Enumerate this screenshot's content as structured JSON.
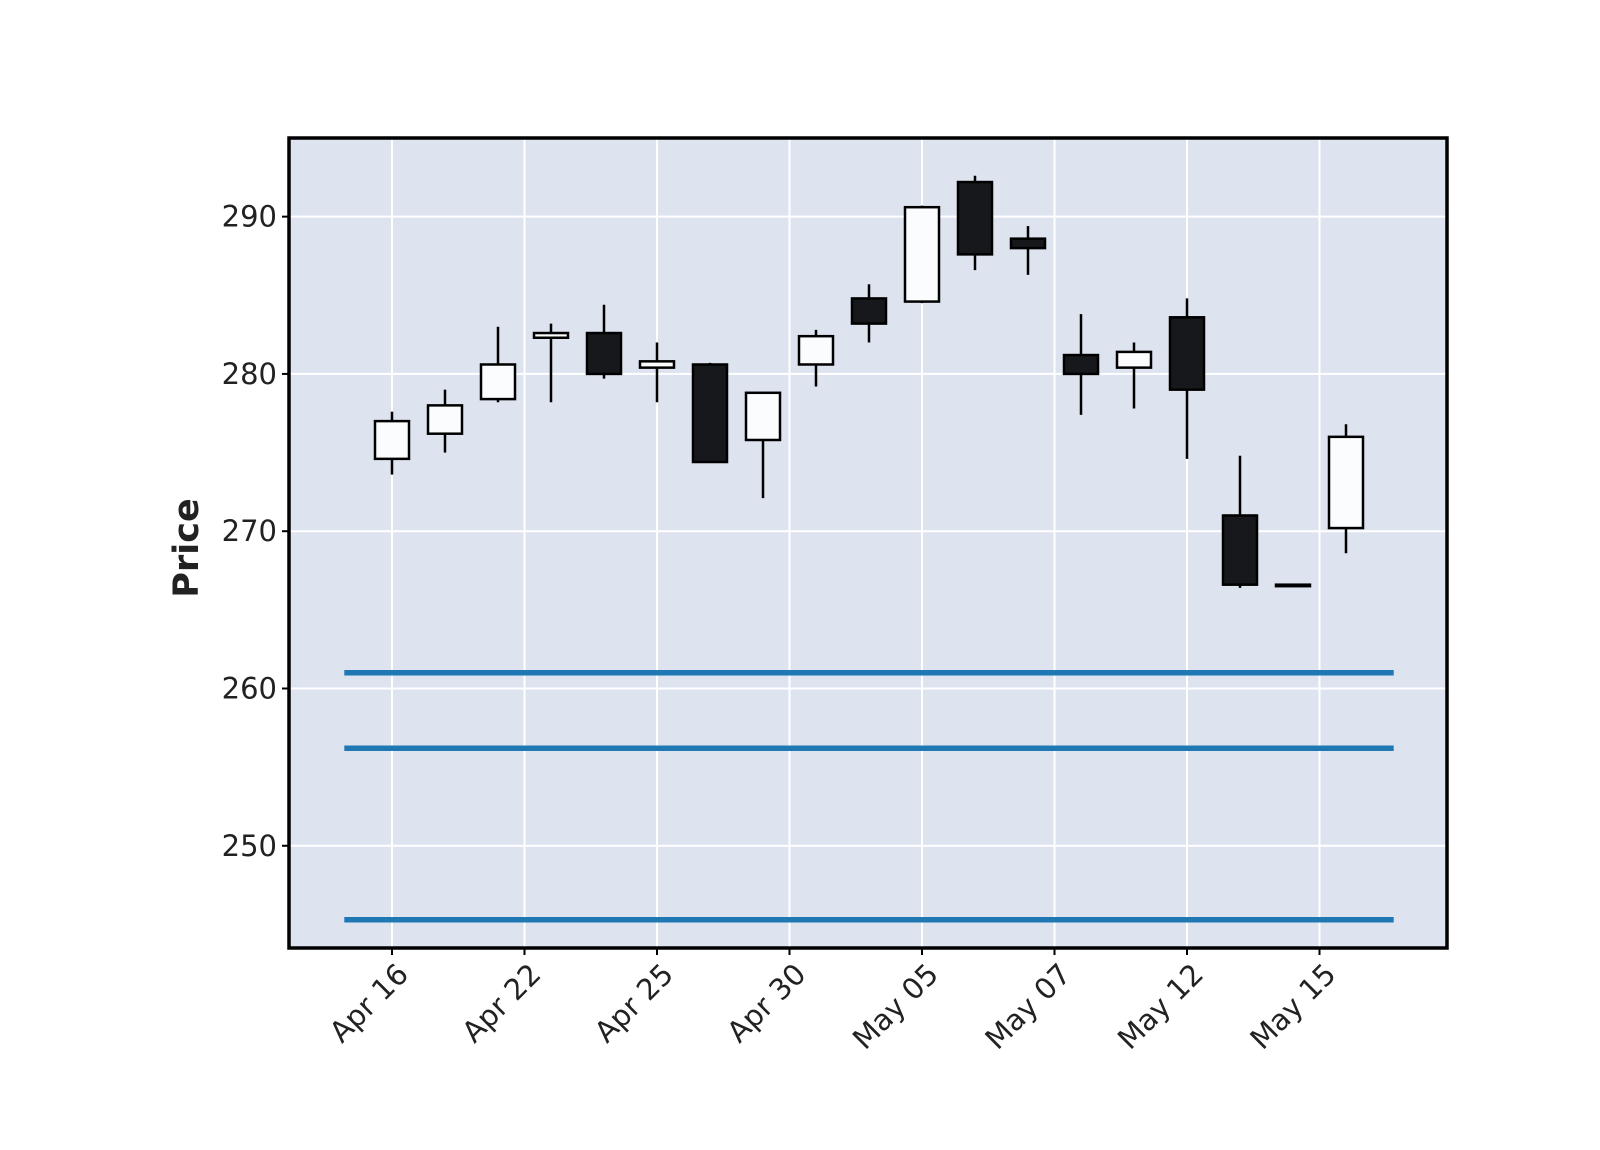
{
  "chart_data": {
    "type": "candlestick",
    "title": "",
    "xlabel": "",
    "ylabel": "Price",
    "ylim": [
      243.5,
      295
    ],
    "y_ticks": [
      250,
      260,
      270,
      280,
      290
    ],
    "x_tick_labels": [
      {
        "index": 0,
        "label": "Apr 16"
      },
      {
        "index": 2.5,
        "label": "Apr 22"
      },
      {
        "index": 5,
        "label": "Apr 25"
      },
      {
        "index": 7.5,
        "label": "Apr 30"
      },
      {
        "index": 10,
        "label": "May 05"
      },
      {
        "index": 12.5,
        "label": "May 07"
      },
      {
        "index": 15,
        "label": "May 12"
      },
      {
        "index": 17.5,
        "label": "May 15"
      }
    ],
    "grid": true,
    "colors": {
      "background": "#dde3ef",
      "up_fill": "#fbfcfe",
      "down_fill": "#17181b",
      "edge": "#000000",
      "hline": "#1f77b4",
      "grid": "#ffffff"
    },
    "candles": [
      {
        "open": 274.6,
        "high": 277.6,
        "low": 273.6,
        "close": 277.0
      },
      {
        "open": 276.2,
        "high": 279.0,
        "low": 275.0,
        "close": 278.0
      },
      {
        "open": 278.4,
        "high": 283.0,
        "low": 278.2,
        "close": 280.6
      },
      {
        "open": 282.3,
        "high": 283.2,
        "low": 278.2,
        "close": 282.6
      },
      {
        "open": 282.6,
        "high": 284.4,
        "low": 279.7,
        "close": 280.0
      },
      {
        "open": 280.4,
        "high": 282.0,
        "low": 278.2,
        "close": 280.8
      },
      {
        "open": 280.6,
        "high": 280.7,
        "low": 274.4,
        "close": 274.4
      },
      {
        "open": 275.8,
        "high": 278.8,
        "low": 272.1,
        "close": 278.8
      },
      {
        "open": 280.6,
        "high": 282.8,
        "low": 279.2,
        "close": 282.4
      },
      {
        "open": 284.8,
        "high": 285.7,
        "low": 282.0,
        "close": 283.2
      },
      {
        "open": 284.6,
        "high": 290.7,
        "low": 284.5,
        "close": 290.6
      },
      {
        "open": 292.2,
        "high": 292.6,
        "low": 286.6,
        "close": 287.6
      },
      {
        "open": 288.6,
        "high": 289.4,
        "low": 286.3,
        "close": 288.0
      },
      {
        "open": 281.2,
        "high": 283.8,
        "low": 277.4,
        "close": 280.0
      },
      {
        "open": 280.4,
        "high": 282.0,
        "low": 277.8,
        "close": 281.4
      },
      {
        "open": 283.6,
        "high": 284.8,
        "low": 274.6,
        "close": 279.0
      },
      {
        "open": 271.0,
        "high": 274.8,
        "low": 266.4,
        "close": 266.6
      },
      {
        "open": 266.6,
        "high": 266.6,
        "low": 266.6,
        "close": 266.6
      },
      {
        "open": 270.2,
        "high": 276.8,
        "low": 268.6,
        "close": 276.0
      }
    ],
    "hlines": [
      261.0,
      256.2,
      245.3
    ]
  }
}
